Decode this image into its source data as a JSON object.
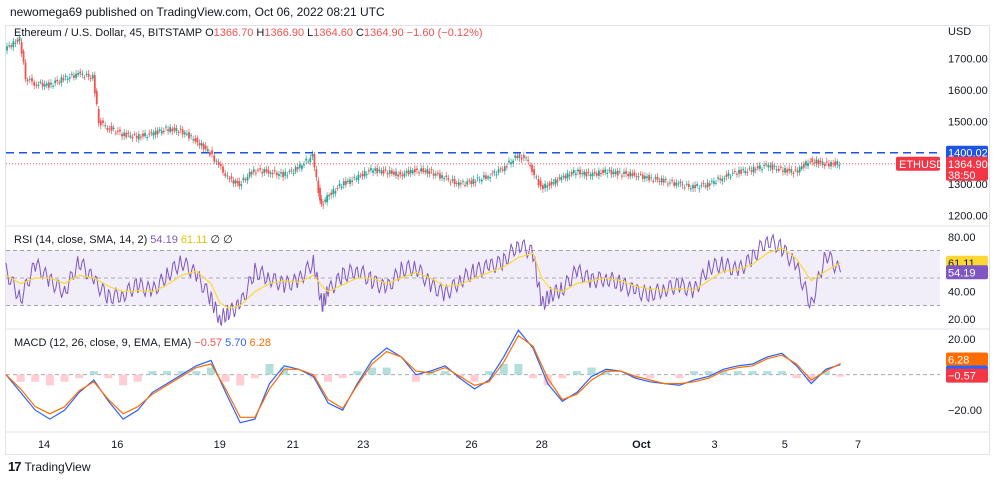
{
  "publish_line": "newomega69 published on TradingView.com, Oct 06, 2022 08:21 UTC",
  "footer": {
    "logo_glyph": "17",
    "brand": "TradingView"
  },
  "colors": {
    "up": "#26a69a",
    "down": "#ef5350",
    "blue": "#2962ff",
    "orange": "#ff6d00",
    "rsi": "#7e57c2",
    "rsi_sma": "#fdd835",
    "level": "#1e53e5",
    "price_tag": "#f23645"
  },
  "price_legend": {
    "symbol": "Ethereum / U.S. Dollar, 45, BITSTAMP",
    "open_label": "O",
    "open": "1366.70",
    "high_label": "H",
    "high": "1366.90",
    "low_label": "L",
    "low": "1364.60",
    "close_label": "C",
    "close": "1364.90",
    "change": "−1.60 (−0.12%)"
  },
  "rsi_legend": {
    "name": "RSI (14, close, SMA, 14, 2)",
    "value": "54.19",
    "sma": "61.11",
    "extra": "∅ ∅"
  },
  "macd_legend": {
    "name": "MACD (12, 26, close, 9, EMA, EMA)",
    "hist": "−0.57",
    "macd": "5.70",
    "signal": "6.28"
  },
  "chart_data": [
    {
      "type": "line",
      "pane": "price",
      "symbol": "ETHUSD",
      "currency_label": "USD",
      "y_ticks": [
        "1700.00",
        "1600.00",
        "1500.00",
        "1300.00",
        "1200.00"
      ],
      "ylim": [
        1180,
        1790
      ],
      "x_ticks": [
        {
          "label": "14",
          "t": 1.3
        },
        {
          "label": "16",
          "t": 3.8
        },
        {
          "label": "19",
          "t": 7.3
        },
        {
          "label": "21",
          "t": 9.8
        },
        {
          "label": "23",
          "t": 12.2
        },
        {
          "label": "26",
          "t": 15.9
        },
        {
          "label": "28",
          "t": 18.3
        },
        {
          "label": "Oct",
          "t": 21.7
        },
        {
          "label": "3",
          "t": 24.2
        },
        {
          "label": "5",
          "t": 26.6
        },
        {
          "label": "7",
          "t": 29.1
        }
      ],
      "xlim": [
        0,
        31.9
      ],
      "x": [
        0,
        0.5,
        0.7,
        1,
        1.5,
        2,
        2.5,
        3,
        3.2,
        3.5,
        4,
        4.5,
        5,
        5.5,
        6,
        6.5,
        7,
        7.3,
        7.6,
        8,
        8.5,
        9,
        9.5,
        10,
        10.5,
        10.7,
        10.8,
        11,
        11.5,
        12,
        12.5,
        13,
        13.5,
        14,
        14.5,
        15,
        15.5,
        16,
        16.5,
        17,
        17.5,
        17.8,
        18,
        18.3,
        18.6,
        19,
        19.5,
        20,
        20.5,
        21,
        21.5,
        22,
        22.5,
        23,
        23.5,
        24,
        24.5,
        25,
        25.5,
        26,
        26.5,
        27,
        27.5,
        28,
        28.5
      ],
      "y": [
        1730,
        1760,
        1640,
        1620,
        1615,
        1635,
        1650,
        1640,
        1500,
        1480,
        1460,
        1450,
        1460,
        1475,
        1470,
        1440,
        1400,
        1360,
        1320,
        1300,
        1345,
        1340,
        1330,
        1350,
        1390,
        1280,
        1230,
        1260,
        1300,
        1320,
        1345,
        1340,
        1330,
        1345,
        1340,
        1320,
        1300,
        1310,
        1325,
        1350,
        1390,
        1380,
        1345,
        1290,
        1300,
        1320,
        1340,
        1330,
        1340,
        1335,
        1330,
        1320,
        1310,
        1300,
        1290,
        1300,
        1320,
        1340,
        1345,
        1360,
        1345,
        1340,
        1375,
        1365,
        1364.9
      ],
      "level_line": {
        "value": "1400.02"
      },
      "last_price": {
        "value": "1364.90",
        "countdown": "38:50"
      }
    },
    {
      "type": "line",
      "pane": "rsi",
      "y_ticks": [
        "80.00",
        "40.00",
        "20.00"
      ],
      "ylim": [
        15,
        85
      ],
      "bands": [
        70,
        50,
        30
      ],
      "x": [
        0,
        0.5,
        1,
        1.5,
        2,
        2.5,
        3,
        3.5,
        4,
        4.5,
        5,
        5.5,
        6,
        6.5,
        7,
        7.3,
        7.6,
        8,
        8.5,
        9,
        9.5,
        10,
        10.5,
        10.8,
        11,
        11.5,
        12,
        12.5,
        13,
        13.5,
        14,
        14.5,
        15,
        15.5,
        16,
        16.5,
        17,
        17.5,
        18,
        18.3,
        18.6,
        19,
        19.5,
        20,
        20.5,
        21,
        21.5,
        22,
        22.5,
        23,
        23.5,
        24,
        24.5,
        25,
        25.5,
        26,
        26.5,
        27,
        27.5,
        28,
        28.5
      ],
      "series": [
        {
          "name": "RSI",
          "values": [
            55,
            35,
            60,
            48,
            40,
            62,
            48,
            36,
            38,
            45,
            40,
            52,
            62,
            52,
            35,
            20,
            25,
            30,
            55,
            50,
            45,
            48,
            62,
            30,
            40,
            52,
            56,
            48,
            42,
            56,
            58,
            45,
            38,
            48,
            55,
            58,
            62,
            75,
            68,
            30,
            38,
            42,
            55,
            48,
            50,
            46,
            40,
            38,
            42,
            45,
            40,
            58,
            60,
            55,
            65,
            78,
            72,
            58,
            30,
            68,
            54.19
          ]
        },
        {
          "name": "SMA",
          "values": [
            52,
            46,
            50,
            50,
            46,
            52,
            50,
            44,
            40,
            41,
            40,
            45,
            52,
            55,
            46,
            32,
            28,
            30,
            40,
            46,
            48,
            47,
            52,
            44,
            40,
            45,
            50,
            50,
            46,
            50,
            54,
            50,
            44,
            45,
            50,
            54,
            58,
            65,
            68,
            50,
            42,
            40,
            46,
            48,
            50,
            48,
            44,
            42,
            41,
            42,
            41,
            48,
            55,
            56,
            60,
            68,
            72,
            64,
            48,
            55,
            61.11
          ]
        }
      ]
    },
    {
      "type": "line",
      "pane": "macd",
      "y_ticks": [
        "20.00",
        "−20.00"
      ],
      "ylim": [
        -30,
        24
      ],
      "x": [
        0,
        0.5,
        1,
        1.5,
        2,
        2.5,
        3,
        3.5,
        4,
        4.5,
        5,
        5.5,
        6,
        6.5,
        7,
        7.5,
        8,
        8.5,
        9,
        9.5,
        10,
        10.5,
        11,
        11.5,
        12,
        12.5,
        13,
        13.5,
        14,
        14.5,
        15,
        15.5,
        16,
        16.5,
        17,
        17.5,
        18,
        18.5,
        19,
        19.5,
        20,
        20.5,
        21,
        21.5,
        22,
        22.5,
        23,
        23.5,
        24,
        24.5,
        25,
        25.5,
        26,
        26.5,
        27,
        27.5,
        28,
        28.5
      ],
      "series": [
        {
          "name": "MACD",
          "values": [
            0,
            -10,
            -20,
            -25,
            -20,
            -10,
            -3,
            -15,
            -25,
            -20,
            -10,
            -5,
            0,
            5,
            8,
            -10,
            -27,
            -25,
            -5,
            5,
            3,
            -1,
            -16,
            -20,
            -5,
            8,
            15,
            10,
            0,
            2,
            5,
            -2,
            -8,
            -3,
            10,
            25,
            15,
            -5,
            -15,
            -10,
            -1,
            3,
            2,
            -2,
            -4,
            -5,
            -6,
            -3,
            -1,
            3,
            5,
            6,
            10,
            12,
            5,
            -5,
            3,
            5.7
          ]
        },
        {
          "name": "Signal",
          "values": [
            0,
            -8,
            -18,
            -22,
            -18,
            -9,
            -4,
            -14,
            -22,
            -18,
            -11,
            -6,
            -1,
            4,
            6,
            -8,
            -24,
            -24,
            -8,
            3,
            3,
            0,
            -14,
            -19,
            -6,
            6,
            13,
            10,
            2,
            1,
            4,
            -1,
            -6,
            -4,
            7,
            22,
            16,
            -2,
            -14,
            -11,
            -3,
            2,
            2,
            -1,
            -3,
            -5,
            -5,
            -4,
            -2,
            2,
            4,
            5,
            9,
            11,
            6,
            -3,
            2,
            6.28
          ]
        }
      ]
    }
  ]
}
